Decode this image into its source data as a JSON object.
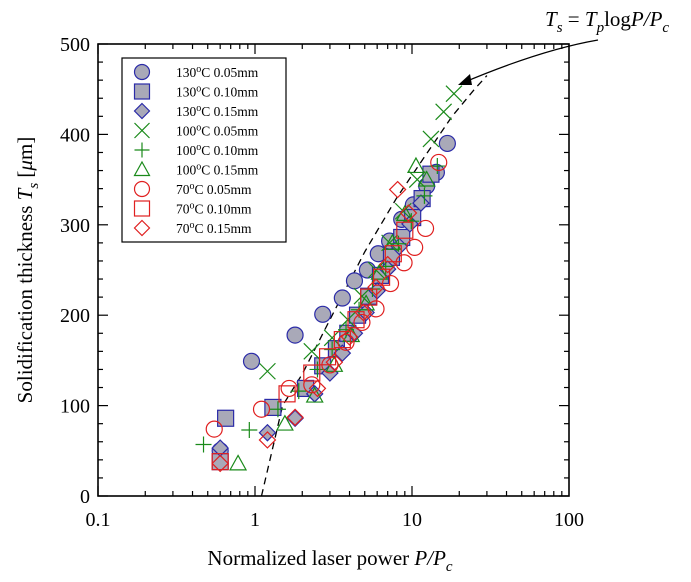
{
  "chart_data": {
    "type": "scatter",
    "xscale": "log",
    "xlim": [
      0.1,
      100
    ],
    "ylim": [
      0,
      500
    ],
    "xticks": [
      0.1,
      1,
      10,
      100
    ],
    "xtick_labels": [
      "0.1",
      "1",
      "10",
      "100"
    ],
    "yticks": [
      0,
      100,
      200,
      300,
      400,
      500
    ],
    "ytick_labels": [
      "0",
      "100",
      "200",
      "300",
      "400",
      "500"
    ],
    "xlabel": {
      "main": "Normalized laser power ",
      "var": "P/P",
      "sub": "c"
    },
    "ylabel": {
      "main": "Solidification thickness ",
      "var": "T",
      "sub": "s",
      "unit_open": " [",
      "unit_mu": "μ",
      "unit_rest": "m]"
    },
    "grid": false,
    "legend_position": "upper-left",
    "annotation": {
      "lhs_var": "T",
      "lhs_sub": "s",
      "eq": " = ",
      "rhs_var": "T",
      "rhs_sub": "p",
      "log": "log",
      "rhs_frac": "P/P",
      "rhs_frac_sub": "c"
    },
    "model_curve": {
      "equation": "Ts = Tp log P/Pc",
      "x": [
        1.1,
        1.5,
        2,
        3,
        5,
        8,
        12,
        18,
        25,
        30
      ],
      "y": [
        0,
        100,
        135,
        195,
        270,
        330,
        375,
        420,
        450,
        465
      ],
      "style": "dashed"
    },
    "series": [
      {
        "name": "130°C 0.05mm",
        "temp": "130",
        "thick": "0.05mm",
        "marker": "circle",
        "color": "#2b2ba8",
        "fill": "#a9a9b8",
        "x": [
          0.6,
          0.95,
          1.8,
          2.7,
          3.6,
          4.3,
          5.2,
          6.1,
          7.2,
          8.6,
          10.2,
          12.4,
          14.3,
          16.8
        ],
        "y": [
          50,
          149,
          178,
          201,
          219,
          238,
          250,
          268,
          282,
          306,
          322,
          343,
          358,
          390
        ]
      },
      {
        "name": "130°C 0.10mm",
        "temp": "130",
        "thick": "0.10mm",
        "marker": "square",
        "color": "#2b2ba8",
        "fill": "#a9a9b8",
        "x": [
          0.6,
          0.65,
          1.3,
          2.1,
          2.7,
          3.3,
          3.9,
          4.5,
          5.3,
          6.3,
          7.4,
          8.6,
          10.1,
          11.6,
          13.2
        ],
        "y": [
          38,
          86,
          98,
          119,
          144,
          163,
          180,
          200,
          221,
          244,
          264,
          286,
          308,
          329,
          356
        ]
      },
      {
        "name": "130°C 0.15mm",
        "temp": "130",
        "thick": "0.15mm",
        "marker": "diamond",
        "color": "#2b2ba8",
        "fill": "#a9a9b8",
        "x": [
          0.6,
          1.2,
          1.8,
          2.4,
          3.0,
          3.6,
          4.3,
          5.1,
          6.0,
          7.0,
          8.3,
          9.7,
          11.4
        ],
        "y": [
          53,
          70,
          86,
          113,
          136,
          158,
          180,
          203,
          227,
          251,
          276,
          301,
          324
        ]
      },
      {
        "name": "100°C 0.05mm",
        "temp": "100",
        "thick": "0.05mm",
        "marker": "x",
        "color": "#1a8a1a",
        "fill": "none",
        "x": [
          1.2,
          2.3,
          3.1,
          3.9,
          4.8,
          5.9,
          7.2,
          8.8,
          10.8,
          13.2,
          15.9,
          18.5
        ],
        "y": [
          138,
          160,
          175,
          195,
          221,
          250,
          280,
          315,
          350,
          395,
          425,
          445
        ]
      },
      {
        "name": "100°C 0.10mm",
        "temp": "100",
        "thick": "0.10mm",
        "marker": "plus",
        "color": "#1a8a1a",
        "fill": "none",
        "x": [
          0.47,
          0.92,
          1.4,
          1.9,
          2.5,
          3.1,
          3.8,
          4.6,
          5.6,
          6.8,
          8.2,
          9.9,
          12.0,
          14.5
        ],
        "y": [
          57,
          73,
          96,
          116,
          140,
          162,
          184,
          206,
          229,
          254,
          279,
          304,
          332,
          365
        ]
      },
      {
        "name": "100°C 0.15mm",
        "temp": "100",
        "thick": "0.15mm",
        "marker": "triangle",
        "color": "#1a8a1a",
        "fill": "none",
        "x": [
          0.78,
          1.55,
          2.4,
          3.2,
          4.1,
          5.1,
          6.2,
          7.5,
          9.0,
          10.6,
          12.4
        ],
        "y": [
          36,
          80,
          111,
          145,
          178,
          213,
          247,
          280,
          312,
          365,
          350
        ]
      },
      {
        "name": "70°C 0.05mm",
        "temp": "70",
        "thick": "0.05mm",
        "marker": "circle",
        "color": "#e02020",
        "fill": "none",
        "x": [
          0.55,
          1.1,
          1.65,
          2.3,
          3.0,
          3.8,
          4.8,
          5.9,
          7.3,
          8.9,
          10.4,
          12.2,
          14.8
        ],
        "y": [
          74,
          96,
          119,
          123,
          145,
          170,
          192,
          207,
          235,
          258,
          275,
          296,
          369
        ]
      },
      {
        "name": "70°C 0.10mm",
        "temp": "70",
        "thick": "0.10mm",
        "marker": "square",
        "color": "#e02020",
        "fill": "none",
        "x": [
          0.6,
          1.6,
          2.3,
          2.9,
          3.6,
          4.4,
          5.3,
          6.4,
          7.6,
          9.0
        ],
        "y": [
          38,
          113,
          136,
          154,
          173,
          195,
          220,
          242,
          268,
          294
        ]
      },
      {
        "name": "70°C 0.15mm",
        "temp": "70",
        "thick": "0.15mm",
        "marker": "diamond",
        "color": "#e02020",
        "fill": "none",
        "x": [
          0.6,
          1.2,
          1.8,
          2.5,
          3.2,
          4.0,
          4.9,
          5.9,
          7.0,
          8.1,
          9.5
        ],
        "y": [
          36,
          62,
          87,
          119,
          148,
          176,
          203,
          231,
          256,
          339,
          313
        ]
      }
    ]
  }
}
